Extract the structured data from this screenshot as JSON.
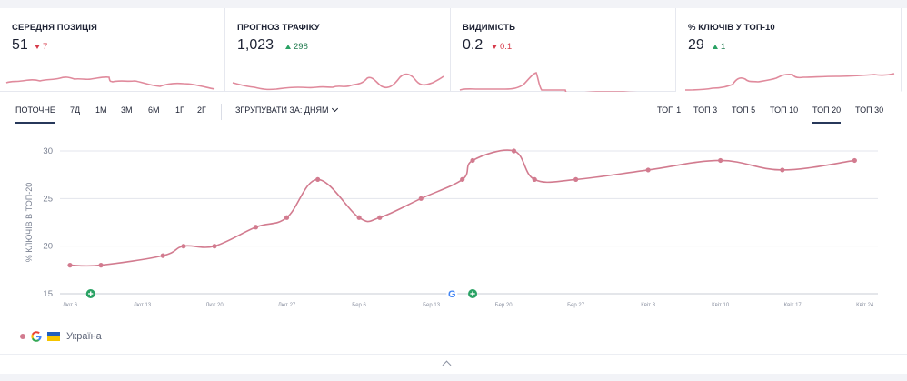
{
  "cards": [
    {
      "title": "СЕРЕДНЯ ПОЗИЦІЯ",
      "value": "51",
      "delta": "7",
      "direction": "down"
    },
    {
      "title": "ПРОГНОЗ ТРАФІКУ",
      "value": "1,023",
      "delta": "298",
      "direction": "up"
    },
    {
      "title": "ВИДИМІСТЬ",
      "value": "0.2",
      "delta": "0.1",
      "direction": "down"
    },
    {
      "title": "% КЛЮЧІВ У ТОП-10",
      "value": "29",
      "delta": "1",
      "direction": "up"
    }
  ],
  "toolbar": {
    "periods": [
      "ПОТОЧНЕ",
      "7Д",
      "1М",
      "3М",
      "6М",
      "1Г",
      "2Г"
    ],
    "active_period": "ПОТОЧНЕ",
    "group_by": "ЗГРУПУВАТИ ЗА: ДНЯМ",
    "tops": [
      "ТОП 1",
      "ТОП 3",
      "ТОП 5",
      "ТОП 10",
      "ТОП 20",
      "ТОП 30"
    ],
    "active_top": "ТОП 20"
  },
  "legend": {
    "label": "Україна",
    "engine_icon": "google-icon",
    "flag_icon": "ukraine-flag-icon"
  },
  "colors": {
    "line": "#d27b8f",
    "spark": "#e08a9c",
    "grid": "#e3e5ec",
    "accent": "#27385a",
    "event": "#2aa264"
  },
  "chart_data": {
    "type": "line",
    "ylabel": "% КЛЮЧІВ В ТОП-20",
    "ylim": [
      15,
      30
    ],
    "yticks": [
      15,
      20,
      25,
      30
    ],
    "xticks": [
      "Лют 6",
      "Лют 13",
      "Лют 20",
      "Лют 27",
      "Бер 6",
      "Бер 13",
      "Бер 20",
      "Бер 27",
      "Квіт 3",
      "Квіт 10",
      "Квіт 17",
      "Квіт 24"
    ],
    "series": [
      {
        "name": "Україна",
        "points": [
          [
            0,
            18
          ],
          [
            3,
            18
          ],
          [
            9,
            19
          ],
          [
            11,
            20
          ],
          [
            14,
            20
          ],
          [
            18,
            22
          ],
          [
            21,
            23
          ],
          [
            24,
            27
          ],
          [
            28,
            23
          ],
          [
            30,
            23
          ],
          [
            34,
            25
          ],
          [
            38,
            27
          ],
          [
            39,
            29
          ],
          [
            43,
            30
          ],
          [
            45,
            27
          ],
          [
            49,
            27
          ],
          [
            56,
            28
          ],
          [
            63,
            29
          ],
          [
            69,
            28
          ],
          [
            76,
            29
          ]
        ]
      }
    ],
    "event_markers": [
      {
        "day": 2,
        "icon": "plus-circle-icon"
      },
      {
        "day": 37,
        "icon": "google-icon"
      },
      {
        "day": 39,
        "icon": "plus-circle-icon"
      }
    ]
  }
}
